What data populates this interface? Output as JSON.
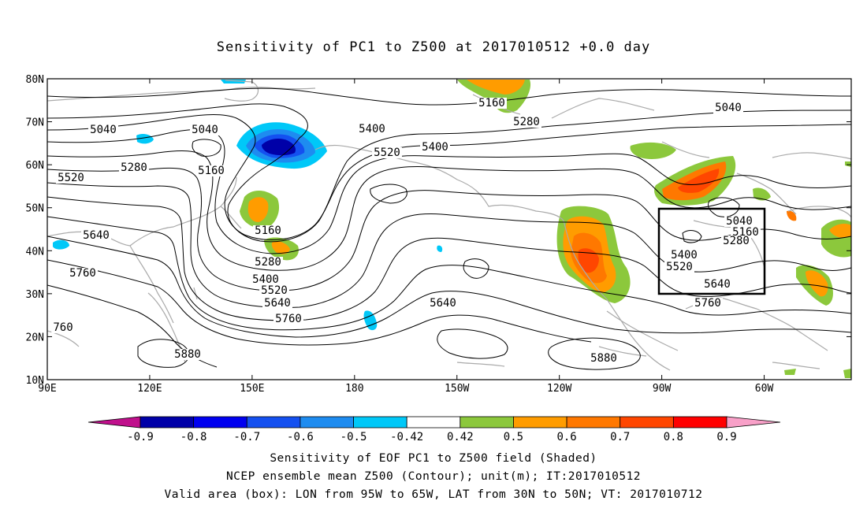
{
  "title": "Sensitivity of PC1 to Z500 at 2017010512 +0.0 day",
  "map": {
    "lat_labels": [
      "80N",
      "70N",
      "60N",
      "50N",
      "40N",
      "30N",
      "20N",
      "10N"
    ],
    "lon_labels": [
      "90E",
      "120E",
      "150E",
      "180",
      "150W",
      "120W",
      "90W",
      "60W"
    ],
    "valid_box": {
      "lon_from": "95W",
      "lon_to": "65W",
      "lat_from": "30N",
      "lat_to": "50N"
    },
    "contour_labels": [
      "5040",
      "5040",
      "5040",
      "5040",
      "5160",
      "5160",
      "5160",
      "5160",
      "5280",
      "5280",
      "5280",
      "5280",
      "5400",
      "5400",
      "5400",
      "5400",
      "5520",
      "5520",
      "5520",
      "5520",
      "5640",
      "5640",
      "5640",
      "5640",
      "5760",
      "5760",
      "5760",
      "760",
      "5880",
      "5880"
    ],
    "colors": {
      "contour": "#000000",
      "coastline": "#aaaaaa",
      "box": "#000000"
    }
  },
  "colorbar": {
    "labels": [
      "-0.9",
      "-0.8",
      "-0.7",
      "-0.6",
      "-0.5",
      "-0.42",
      "0.42",
      "0.5",
      "0.6",
      "0.7",
      "0.8",
      "0.9"
    ],
    "colors": [
      "#c0108c",
      "#0000a8",
      "#0000f0",
      "#1450f0",
      "#1e8cf0",
      "#00c8f8",
      "#ffffff",
      "#8cc83c",
      "#ff9c00",
      "#ff7800",
      "#ff4600",
      "#ff0000",
      "#f8a0c8"
    ]
  },
  "captions": [
    "Sensitivity of EOF PC1 to Z500 field (Shaded)",
    "NCEP ensemble mean Z500 (Contour); unit(m); IT:2017010512",
    "Valid area (box): LON from 95W to 65W, LAT from 30N to 50N; VT: 2017010712"
  ]
}
